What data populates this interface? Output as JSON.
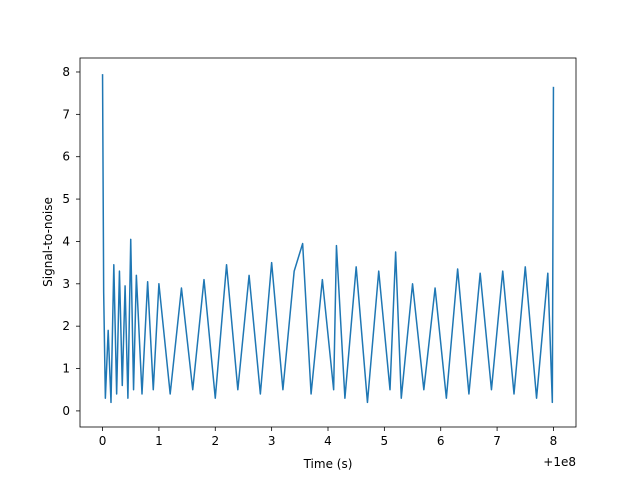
{
  "chart_data": {
    "type": "line",
    "title": "",
    "xlabel": "Time (s)",
    "ylabel": "Signal-to-noise",
    "x_offset_label": "+1e8",
    "xlim": [
      -0.4,
      8.4
    ],
    "ylim": [
      -0.38,
      8.33
    ],
    "x_ticks": [
      0,
      1,
      2,
      3,
      4,
      5,
      6,
      7,
      8
    ],
    "x_tick_labels": [
      "0",
      "1",
      "2",
      "3",
      "4",
      "5",
      "6",
      "7",
      "8"
    ],
    "y_ticks": [
      0,
      1,
      2,
      3,
      4,
      5,
      6,
      7,
      8
    ],
    "y_tick_labels": [
      "0",
      "1",
      "2",
      "3",
      "4",
      "5",
      "6",
      "7",
      "8"
    ],
    "grid": false,
    "legend": "none",
    "series": [
      {
        "color": "#1f77b4",
        "x": [
          0.0,
          0.02,
          0.05,
          0.1,
          0.15,
          0.2,
          0.25,
          0.3,
          0.35,
          0.4,
          0.45,
          0.5,
          0.55,
          0.6,
          0.7,
          0.8,
          0.9,
          1.0,
          1.2,
          1.4,
          1.6,
          1.8,
          2.0,
          2.2,
          2.4,
          2.6,
          2.8,
          3.0,
          3.2,
          3.4,
          3.55,
          3.7,
          3.9,
          4.1,
          4.15,
          4.3,
          4.5,
          4.7,
          4.9,
          5.1,
          5.2,
          5.3,
          5.5,
          5.7,
          5.9,
          6.1,
          6.3,
          6.5,
          6.7,
          6.9,
          7.1,
          7.3,
          7.5,
          7.7,
          7.9,
          7.98,
          8.0
        ],
        "y": [
          7.95,
          2.8,
          0.3,
          1.9,
          0.2,
          3.45,
          0.4,
          3.3,
          0.6,
          2.95,
          0.3,
          4.05,
          0.5,
          3.2,
          0.4,
          3.05,
          0.5,
          3.0,
          0.4,
          2.9,
          0.5,
          3.1,
          0.3,
          3.45,
          0.5,
          3.2,
          0.4,
          3.5,
          0.5,
          3.3,
          3.95,
          0.4,
          3.1,
          0.5,
          3.9,
          0.3,
          3.4,
          0.2,
          3.3,
          0.5,
          3.75,
          0.3,
          3.0,
          0.5,
          2.9,
          0.3,
          3.35,
          0.4,
          3.25,
          0.5,
          3.3,
          0.4,
          3.4,
          0.3,
          3.25,
          0.2,
          7.65
        ]
      }
    ]
  }
}
